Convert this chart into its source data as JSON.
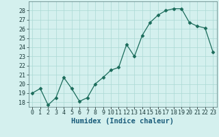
{
  "x": [
    0,
    1,
    2,
    3,
    4,
    5,
    6,
    7,
    8,
    9,
    10,
    11,
    12,
    13,
    14,
    15,
    16,
    17,
    18,
    19,
    20,
    21,
    22,
    23
  ],
  "y": [
    19.0,
    19.5,
    17.7,
    18.5,
    20.7,
    19.5,
    18.1,
    18.5,
    20.0,
    20.7,
    21.5,
    21.8,
    24.3,
    23.0,
    25.3,
    26.7,
    27.5,
    28.0,
    28.2,
    28.2,
    26.7,
    26.3,
    26.1,
    23.5
  ],
  "xlabel": "Humidex (Indice chaleur)",
  "ylabel": "",
  "ylim": [
    17.5,
    29.0
  ],
  "xlim": [
    -0.5,
    23.5
  ],
  "yticks": [
    18,
    19,
    20,
    21,
    22,
    23,
    24,
    25,
    26,
    27,
    28
  ],
  "xtick_labels": [
    "0",
    "1",
    "2",
    "3",
    "4",
    "5",
    "6",
    "7",
    "8",
    "9",
    "10",
    "11",
    "12",
    "13",
    "14",
    "15",
    "16",
    "17",
    "18",
    "19",
    "20",
    "21",
    "22",
    "23"
  ],
  "line_color": "#1a6b5a",
  "marker": "D",
  "marker_size": 2.5,
  "bg_color": "#d4f0ee",
  "grid_color": "#aad8d4",
  "xlabel_color": "#1a5c7a",
  "label_fontsize": 7.5,
  "tick_fontsize": 6.0,
  "tick_color": "#1a3a3a"
}
